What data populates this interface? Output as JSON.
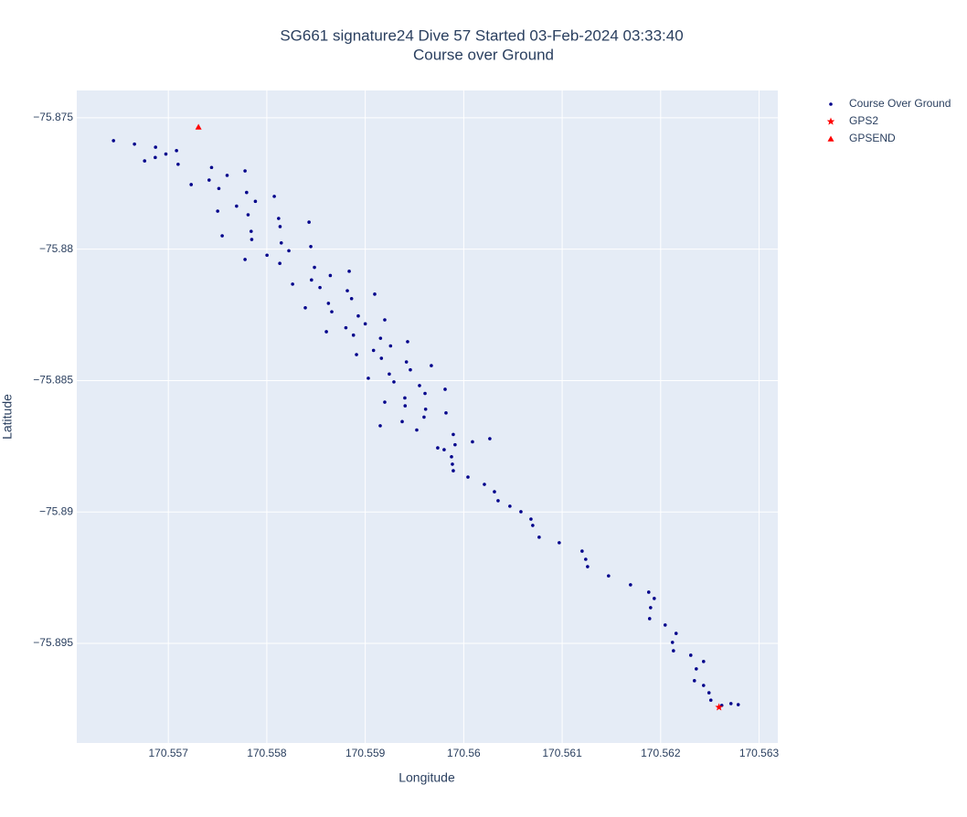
{
  "chart_data": {
    "type": "scatter",
    "title": "SG661 signature24 Dive 57 Started 03-Feb-2024 03:33:40",
    "subtitle": "Course over Ground",
    "x_label": "Longitude",
    "y_label": "Latitude",
    "xlim": [
      170.55607,
      170.56319
    ],
    "ylim": [
      -75.89879,
      -75.87396
    ],
    "xticks": [
      170.557,
      170.558,
      170.559,
      170.56,
      170.561,
      170.562,
      170.563
    ],
    "yticks": [
      {
        "value": -75.875,
        "label": "−75.875"
      },
      {
        "value": -75.88,
        "label": "−75.88"
      },
      {
        "value": -75.885,
        "label": "−75.885"
      },
      {
        "value": -75.89,
        "label": "−75.89"
      },
      {
        "value": -75.895,
        "label": "−75.895"
      }
    ],
    "grid": true,
    "legend": "right",
    "series": [
      {
        "name": "Course Over Ground",
        "color": "#00008b",
        "marker": "dot",
        "x": [
          170.556443,
          170.556656,
          170.55687,
          170.557083,
          170.556975,
          170.556867,
          170.556759,
          170.557099,
          170.557439,
          170.557779,
          170.557597,
          170.557414,
          170.557232,
          170.557513,
          170.557795,
          170.558076,
          170.557884,
          170.557693,
          170.557501,
          170.55781,
          170.55812,
          170.558429,
          170.558135,
          170.557841,
          170.557547,
          170.557847,
          170.558147,
          170.558447,
          170.558224,
          170.558002,
          170.557779,
          170.558132,
          170.558484,
          170.558837,
          170.558645,
          170.558454,
          170.558262,
          170.55854,
          170.558818,
          170.559096,
          170.558861,
          170.558626,
          170.558391,
          170.55866,
          170.558929,
          170.559198,
          170.559,
          170.558803,
          170.558605,
          170.55888,
          170.559155,
          170.55943,
          170.559257,
          170.559084,
          170.558911,
          170.559164,
          170.559418,
          170.559671,
          170.559458,
          170.559244,
          170.559031,
          170.559291,
          170.559551,
          170.559811,
          170.559607,
          170.559402,
          170.559198,
          170.559405,
          170.559613,
          170.55982,
          170.559597,
          170.559375,
          170.559152,
          170.559523,
          170.559894,
          170.560265,
          170.560089,
          170.559912,
          170.559736,
          170.559801,
          170.559876,
          170.559885,
          170.559894,
          170.560043,
          170.56021,
          170.560312,
          170.560349,
          170.560469,
          170.560581,
          170.560683,
          170.560701,
          170.560766,
          170.56097,
          170.561202,
          170.561239,
          170.561258,
          170.561471,
          170.561694,
          170.561879,
          170.561935,
          170.561898,
          170.561888,
          170.562046,
          170.562157,
          170.56212,
          170.56213,
          170.562306,
          170.562436,
          170.562362,
          170.562343,
          170.562436,
          170.562491,
          170.56251,
          170.562621,
          170.562714,
          170.562788
        ],
        "values": [
          -75.87587,
          -75.876,
          -75.87612,
          -75.87625,
          -75.87638,
          -75.87651,
          -75.87664,
          -75.87677,
          -75.87689,
          -75.87702,
          -75.87719,
          -75.87737,
          -75.87754,
          -75.87769,
          -75.87784,
          -75.87799,
          -75.87818,
          -75.87836,
          -75.87855,
          -75.87869,
          -75.87883,
          -75.87897,
          -75.87914,
          -75.87932,
          -75.87949,
          -75.87963,
          -75.87976,
          -75.8799,
          -75.88006,
          -75.88023,
          -75.88039,
          -75.88054,
          -75.88069,
          -75.88084,
          -75.881,
          -75.88117,
          -75.88133,
          -75.88146,
          -75.88158,
          -75.88171,
          -75.88188,
          -75.88206,
          -75.88223,
          -75.88238,
          -75.88254,
          -75.88269,
          -75.88284,
          -75.88299,
          -75.88314,
          -75.88327,
          -75.88339,
          -75.88352,
          -75.88368,
          -75.88385,
          -75.88401,
          -75.88415,
          -75.88429,
          -75.88443,
          -75.88459,
          -75.88475,
          -75.88491,
          -75.88505,
          -75.88519,
          -75.88533,
          -75.88549,
          -75.88566,
          -75.88582,
          -75.88596,
          -75.88609,
          -75.88623,
          -75.88639,
          -75.88656,
          -75.88672,
          -75.88688,
          -75.88705,
          -75.88721,
          -75.88733,
          -75.88744,
          -75.88756,
          -75.88763,
          -75.8879,
          -75.88818,
          -75.88843,
          -75.88867,
          -75.88895,
          -75.88923,
          -75.88957,
          -75.88978,
          -75.88999,
          -75.89027,
          -75.89051,
          -75.89096,
          -75.89117,
          -75.89149,
          -75.8918,
          -75.89208,
          -75.89243,
          -75.89277,
          -75.89305,
          -75.89329,
          -75.89364,
          -75.89406,
          -75.8943,
          -75.89462,
          -75.89496,
          -75.89528,
          -75.89545,
          -75.89569,
          -75.89597,
          -75.89642,
          -75.8966,
          -75.89688,
          -75.89716,
          -75.89736,
          -75.89729,
          -75.89733
        ]
      },
      {
        "name": "GPS2",
        "color": "#ff0000",
        "marker": "star",
        "x": [
          170.562593
        ],
        "values": [
          -75.89743
        ]
      },
      {
        "name": "GPSEND",
        "color": "#ff0000",
        "marker": "triangle",
        "x": [
          170.557306
        ],
        "values": [
          -75.87535
        ]
      }
    ]
  }
}
